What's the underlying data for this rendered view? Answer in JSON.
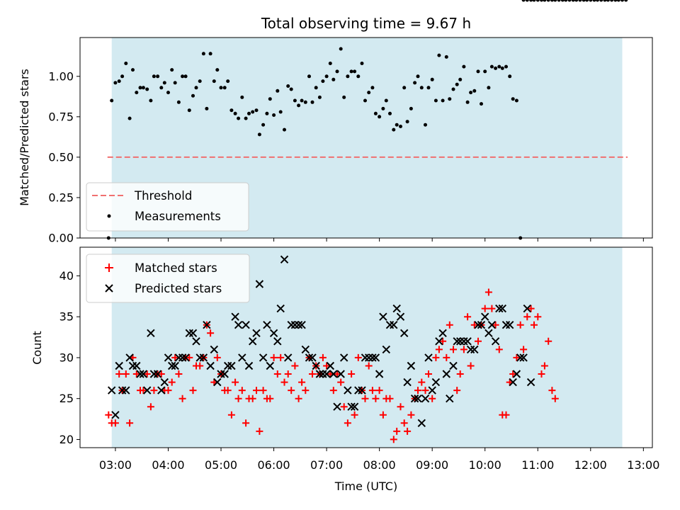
{
  "chart_data": {
    "type": "scatter",
    "title": "Total observing time = 9.67 h",
    "xlabel": "Time (UTC)",
    "x_ticks": [
      "03:00",
      "04:00",
      "05:00",
      "06:00",
      "07:00",
      "08:00",
      "09:00",
      "10:00",
      "11:00",
      "12:00",
      "13:00"
    ],
    "x_range_hours": [
      2.33,
      13.17
    ],
    "shaded_interval_hours": [
      2.93,
      12.6
    ],
    "colors": {
      "shade": "#d3eaf1",
      "threshold": "#f07070",
      "matched": "#ff0000",
      "predicted": "#000000"
    },
    "top_panel": {
      "ylabel": "Matched/Predicted stars",
      "ylim": [
        0,
        1.24
      ],
      "y_ticks": [
        "0.00",
        "0.25",
        "0.50",
        "0.75",
        "1.00"
      ],
      "threshold_value": 0.5,
      "legend": [
        "Threshold",
        "Measurements"
      ],
      "legend_position": "lower-left",
      "measurements": {
        "hours": [
          2.87,
          2.93,
          3.0,
          3.07,
          3.13,
          3.2,
          3.27,
          3.33,
          3.4,
          3.47,
          3.53,
          3.6,
          3.67,
          3.73,
          3.8,
          3.87,
          3.93,
          4.0,
          4.07,
          4.13,
          4.2,
          4.27,
          4.33,
          4.4,
          4.47,
          4.53,
          4.6,
          4.67,
          4.73,
          4.8,
          4.87,
          4.93,
          5.0,
          5.07,
          5.13,
          5.2,
          5.27,
          5.33,
          5.4,
          5.47,
          5.53,
          5.6,
          5.67,
          5.73,
          5.8,
          5.87,
          5.93,
          6.0,
          6.07,
          6.13,
          6.2,
          6.27,
          6.33,
          6.4,
          6.47,
          6.53,
          6.6,
          6.67,
          6.73,
          6.8,
          6.87,
          6.93,
          7.0,
          7.07,
          7.13,
          7.2,
          7.27,
          7.33,
          7.4,
          7.47,
          7.53,
          7.6,
          7.67,
          7.73,
          7.8,
          7.87,
          7.93,
          8.0,
          8.07,
          8.13,
          8.2,
          8.27,
          8.33,
          8.4,
          8.47,
          8.53,
          8.6,
          8.67,
          8.73,
          8.8,
          8.87,
          8.93,
          9.0,
          9.07,
          9.13,
          9.2,
          9.27,
          9.33,
          9.4,
          9.47,
          9.53,
          9.6,
          9.67,
          9.73,
          9.8,
          9.87,
          9.93,
          10.0,
          10.07,
          10.13,
          10.2,
          10.27,
          10.33,
          10.4,
          10.47,
          10.53,
          10.6,
          10.67,
          10.73,
          10.8,
          10.87,
          10.93,
          11.0,
          11.07,
          11.13,
          11.2,
          11.27,
          11.33,
          11.4,
          11.47,
          11.53,
          11.6,
          11.67,
          11.73,
          11.8,
          11.87,
          11.93,
          12.0,
          12.07,
          12.13,
          12.2,
          12.27,
          12.33,
          12.4,
          12.47,
          12.53,
          12.6,
          12.67
        ],
        "ratios": [
          0.0,
          0.85,
          0.96,
          0.97,
          1.0,
          1.08,
          0.74,
          1.04,
          0.9,
          0.93,
          0.93,
          0.92,
          0.85,
          1.0,
          1.0,
          0.93,
          0.96,
          0.9,
          1.04,
          0.96,
          0.84,
          1.0,
          1.0,
          0.79,
          0.88,
          0.93,
          0.97,
          1.14,
          0.8,
          1.14,
          0.97,
          1.04,
          0.93,
          0.93,
          0.97,
          0.79,
          0.77,
          0.74,
          0.87,
          0.74,
          0.77,
          0.78,
          0.79,
          0.64,
          0.7,
          0.77,
          0.86,
          0.76,
          0.91,
          0.78,
          0.67,
          0.94,
          0.92,
          0.85,
          0.82,
          0.85,
          0.84,
          1.0,
          0.84,
          0.93,
          0.87,
          0.97,
          1.0,
          1.08,
          0.98,
          1.03,
          1.17,
          0.87,
          1.0,
          1.03,
          1.03,
          1.0,
          1.08,
          0.85,
          0.9,
          0.93,
          0.77,
          0.75,
          0.8,
          0.85,
          0.77,
          0.67,
          0.7,
          0.69,
          0.93,
          0.72,
          0.8,
          0.96,
          1.0,
          0.93,
          0.7,
          0.93,
          0.98,
          0.85,
          1.13,
          0.85,
          1.12,
          0.86,
          0.92,
          0.95,
          0.98,
          1.06,
          0.84,
          0.9,
          0.91,
          1.03,
          0.83,
          1.03,
          0.93,
          1.06,
          1.05,
          1.06,
          1.05,
          1.06,
          1.0,
          0.86,
          0.85,
          0.0
        ]
      }
    },
    "bottom_panel": {
      "ylabel": "Count",
      "ylim": [
        19,
        43.5
      ],
      "y_ticks": [
        "20",
        "25",
        "30",
        "35",
        "40"
      ],
      "legend": [
        "Matched stars",
        "Predicted stars"
      ],
      "legend_position": "upper-left",
      "matched": {
        "hours": [
          2.87,
          2.93,
          3.0,
          3.07,
          3.13,
          3.2,
          3.27,
          3.33,
          3.4,
          3.47,
          3.53,
          3.6,
          3.67,
          3.73,
          3.8,
          3.87,
          3.93,
          4.0,
          4.07,
          4.13,
          4.2,
          4.27,
          4.33,
          4.4,
          4.47,
          4.53,
          4.6,
          4.67,
          4.73,
          4.8,
          4.87,
          4.93,
          5.0,
          5.07,
          5.13,
          5.2,
          5.27,
          5.33,
          5.4,
          5.47,
          5.53,
          5.6,
          5.67,
          5.73,
          5.8,
          5.87,
          5.93,
          6.0,
          6.07,
          6.13,
          6.2,
          6.27,
          6.33,
          6.4,
          6.47,
          6.53,
          6.6,
          6.67,
          6.73,
          6.8,
          6.87,
          6.93,
          7.0,
          7.07,
          7.13,
          7.2,
          7.27,
          7.33,
          7.4,
          7.47,
          7.53,
          7.6,
          7.67,
          7.73,
          7.8,
          7.87,
          7.93,
          8.0,
          8.07,
          8.13,
          8.2,
          8.27,
          8.33,
          8.4,
          8.47,
          8.53,
          8.6,
          8.67,
          8.73,
          8.8,
          8.87,
          8.93,
          9.0,
          9.07,
          9.13,
          9.2,
          9.27,
          9.33,
          9.4,
          9.47,
          9.53,
          9.6,
          9.67,
          9.73,
          9.8,
          9.87,
          9.93,
          10.0,
          10.07,
          10.13,
          10.2,
          10.27,
          10.33,
          10.4,
          10.47,
          10.53,
          10.6,
          10.67,
          10.73,
          10.8,
          10.87,
          10.93,
          11.0,
          11.07,
          11.13,
          11.2,
          11.27,
          11.33,
          11.4,
          11.47,
          11.53,
          11.6,
          11.67,
          11.73,
          11.8,
          11.87,
          11.93,
          12.0,
          12.07,
          12.13,
          12.2,
          12.27,
          12.33,
          12.4,
          12.47,
          12.53,
          12.6,
          12.67
        ],
        "values": [
          23,
          22,
          22,
          28,
          26,
          28,
          22,
          30,
          28,
          26,
          26,
          28,
          24,
          26,
          28,
          28,
          26,
          26,
          27,
          30,
          28,
          25,
          30,
          30,
          26,
          29,
          29,
          30,
          34,
          33,
          27,
          30,
          28,
          26,
          26,
          23,
          27,
          25,
          26,
          22,
          25,
          25,
          26,
          21,
          26,
          25,
          25,
          30,
          28,
          30,
          27,
          28,
          26,
          29,
          25,
          27,
          26,
          30,
          28,
          29,
          28,
          30,
          29,
          28,
          26,
          28,
          27,
          24,
          22,
          28,
          23,
          30,
          26,
          25,
          29,
          26,
          25,
          26,
          23,
          25,
          25,
          20,
          21,
          24,
          22,
          21,
          23,
          25,
          26,
          27,
          26,
          28,
          25,
          30,
          31,
          32,
          30,
          34,
          31,
          26,
          28,
          31,
          35,
          29,
          34,
          32,
          34,
          36,
          38,
          36,
          34,
          31,
          23,
          23,
          27,
          28,
          30,
          34,
          31,
          35,
          36,
          34,
          35,
          28,
          29,
          32,
          26,
          25
        ]
      },
      "predicted": {
        "hours": [
          2.93,
          3.0,
          3.07,
          3.13,
          3.2,
          3.27,
          3.33,
          3.4,
          3.47,
          3.53,
          3.6,
          3.67,
          3.73,
          3.8,
          3.87,
          3.93,
          4.0,
          4.07,
          4.13,
          4.2,
          4.27,
          4.33,
          4.4,
          4.47,
          4.53,
          4.6,
          4.67,
          4.73,
          4.8,
          4.87,
          4.93,
          5.0,
          5.07,
          5.13,
          5.2,
          5.27,
          5.33,
          5.4,
          5.47,
          5.53,
          5.6,
          5.67,
          5.73,
          5.8,
          5.87,
          5.93,
          6.0,
          6.07,
          6.13,
          6.2,
          6.27,
          6.33,
          6.4,
          6.47,
          6.53,
          6.6,
          6.67,
          6.73,
          6.8,
          6.87,
          6.93,
          7.0,
          7.07,
          7.13,
          7.2,
          7.27,
          7.33,
          7.4,
          7.47,
          7.53,
          7.6,
          7.67,
          7.73,
          7.8,
          7.87,
          7.93,
          8.0,
          8.07,
          8.13,
          8.2,
          8.27,
          8.33,
          8.4,
          8.47,
          8.53,
          8.6,
          8.67,
          8.73,
          8.8,
          8.87,
          8.93,
          9.0,
          9.07,
          9.13,
          9.2,
          9.27,
          9.33,
          9.4,
          9.47,
          9.53,
          9.6,
          9.67,
          9.73,
          9.8,
          9.87,
          9.93,
          10.0,
          10.07,
          10.13,
          10.2,
          10.27,
          10.33,
          10.4,
          10.47,
          10.53,
          10.6,
          10.67,
          10.73,
          10.8,
          10.87,
          10.93,
          11.0,
          11.07,
          11.13,
          11.2,
          11.27,
          11.33,
          11.4,
          11.47,
          11.53,
          11.6,
          11.67,
          11.73,
          11.8,
          11.87,
          11.93,
          12.0,
          12.07,
          12.13,
          12.2,
          12.27,
          12.33,
          12.4,
          12.47,
          12.53,
          12.6
        ],
        "values": [
          26,
          23,
          29,
          26,
          26,
          30,
          29,
          29,
          28,
          28,
          26,
          33,
          28,
          28,
          26,
          27,
          30,
          29,
          29,
          30,
          30,
          30,
          33,
          33,
          32,
          30,
          30,
          34,
          29,
          31,
          27,
          28,
          28,
          29,
          29,
          35,
          34,
          30,
          34,
          29,
          32,
          33,
          39,
          30,
          34,
          29,
          33,
          32,
          36,
          42,
          30,
          34,
          34,
          34,
          34,
          31,
          30,
          30,
          29,
          28,
          28,
          28,
          29,
          28,
          24,
          28,
          30,
          26,
          24,
          24,
          26,
          26,
          30,
          30,
          30,
          30,
          28,
          35,
          31,
          34,
          34,
          36,
          35,
          33,
          27,
          29,
          25,
          25,
          22,
          25,
          30,
          26,
          27,
          32,
          33,
          28,
          25,
          29,
          32,
          32,
          32,
          32,
          31,
          31,
          34,
          34,
          35,
          33,
          34,
          32,
          36,
          36,
          34,
          34,
          27,
          28,
          30,
          30,
          36,
          27
        ]
      }
    }
  }
}
